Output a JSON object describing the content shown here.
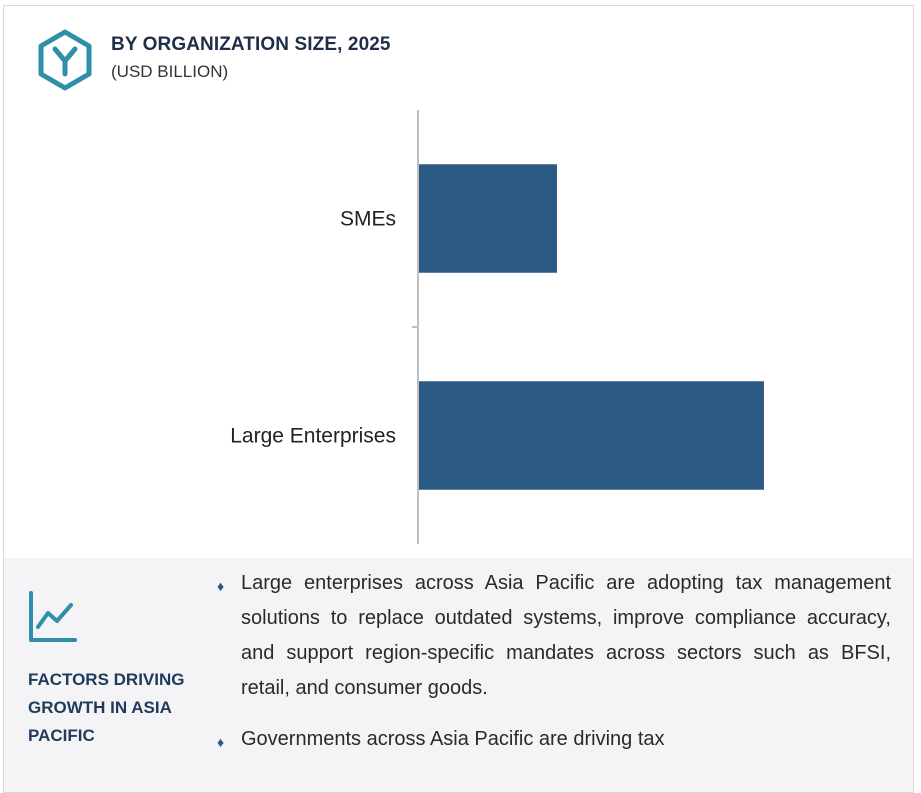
{
  "header": {
    "title": "BY ORGANIZATION SIZE, 2025",
    "subtitle": "(USD BILLION)",
    "icon": "hexagon-y-logo-icon"
  },
  "chart_data": {
    "type": "bar",
    "orientation": "horizontal",
    "categories": [
      "SMEs",
      "Large Enterprises"
    ],
    "series": [
      {
        "values": [
          4,
          10
        ]
      }
    ],
    "title": "BY ORGANIZATION SIZE, 2025",
    "subtitle": "(USD BILLION)",
    "xlabel": "",
    "ylabel": "",
    "xlim": [
      0,
      13.8
    ],
    "grid": false,
    "legend": "none",
    "bar_color": "#2b5b84",
    "axis_color": "#bfbfbf"
  },
  "factors": {
    "title": "FACTORS DRIVING GROWTH IN ASIA PACIFIC",
    "icon": "line-chart-trend-icon",
    "bullets": [
      "Large enterprises across Asia Pacific are adopting tax management solutions to replace outdated systems, improve compliance accuracy, and support region-specific mandates across sectors such as BFSI, retail, and consumer goods.",
      "Governments across Asia Pacific are driving tax"
    ]
  },
  "colors": {
    "accent": "#2b5b84",
    "icon_teal": "#2f8fa8",
    "panel_bg": "#f4f4f7",
    "heading": "#1f2f4a"
  }
}
